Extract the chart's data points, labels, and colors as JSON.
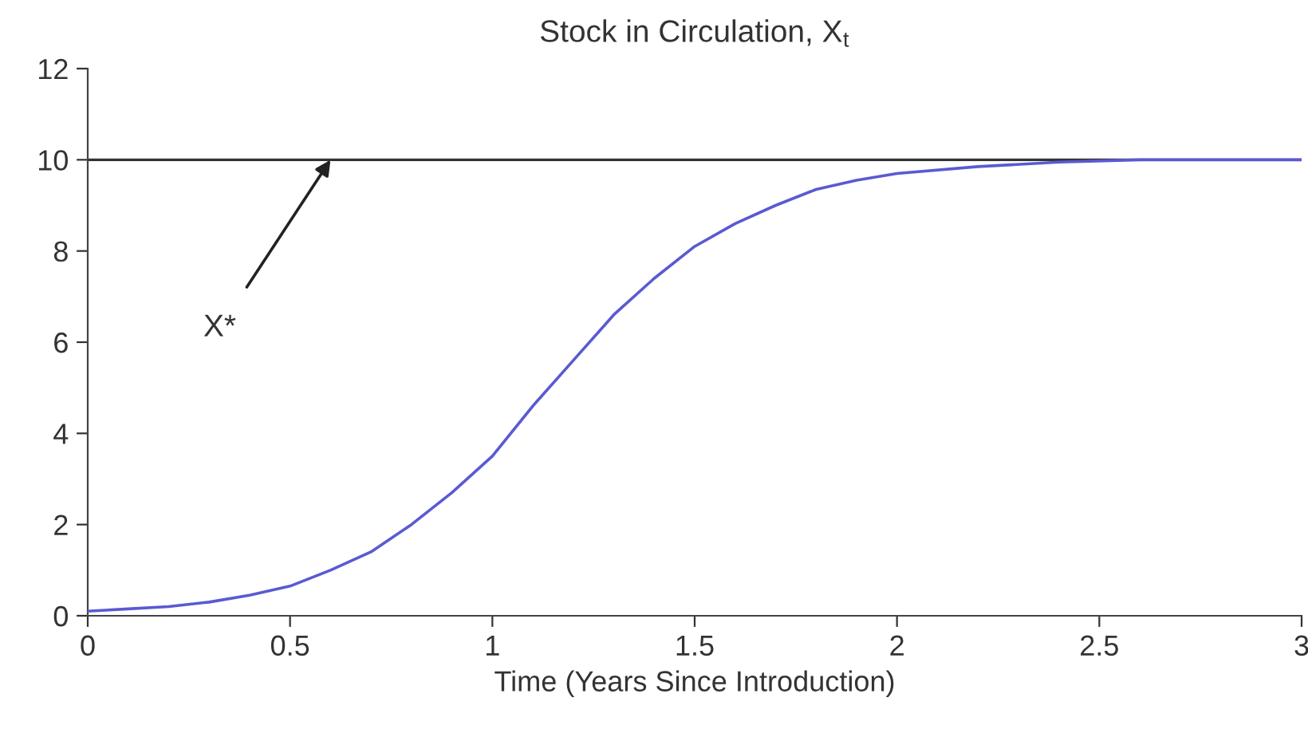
{
  "chart_data": {
    "type": "line",
    "title": "Stock in Circulation, X$_{t}$",
    "xlabel": "Time (Years Since Introduction)",
    "x": [
      0,
      0.1,
      0.2,
      0.3,
      0.4,
      0.5,
      0.6,
      0.7,
      0.8,
      0.9,
      1.0,
      1.1,
      1.2,
      1.3,
      1.4,
      1.5,
      1.6,
      1.7,
      1.8,
      1.9,
      2.0,
      2.2,
      2.4,
      2.6,
      2.8,
      3.0
    ],
    "series": [
      {
        "color": "#5a5ad2",
        "values": [
          0.1,
          0.15,
          0.2,
          0.3,
          0.45,
          0.65,
          1.0,
          1.4,
          2.0,
          2.7,
          3.5,
          4.6,
          5.6,
          6.6,
          7.4,
          8.1,
          8.6,
          9.0,
          9.35,
          9.55,
          9.7,
          9.85,
          9.95,
          10.0,
          10.0,
          10.0
        ]
      }
    ],
    "xlim": [
      0,
      3
    ],
    "xticks": [
      0,
      0.5,
      1,
      1.5,
      2,
      2.5,
      3
    ],
    "ylim": [
      0,
      12
    ],
    "yticks": [
      0,
      2,
      4,
      6,
      8,
      10,
      12
    ],
    "ref_lines": [
      {
        "axis": "y",
        "value": 10,
        "color": "#333333"
      }
    ],
    "annotations": [
      {
        "text": "X*",
        "x": 0.6,
        "y": 10
      }
    ],
    "grid": false,
    "legend": false,
    "marker": "none",
    "line_style": "solid"
  }
}
